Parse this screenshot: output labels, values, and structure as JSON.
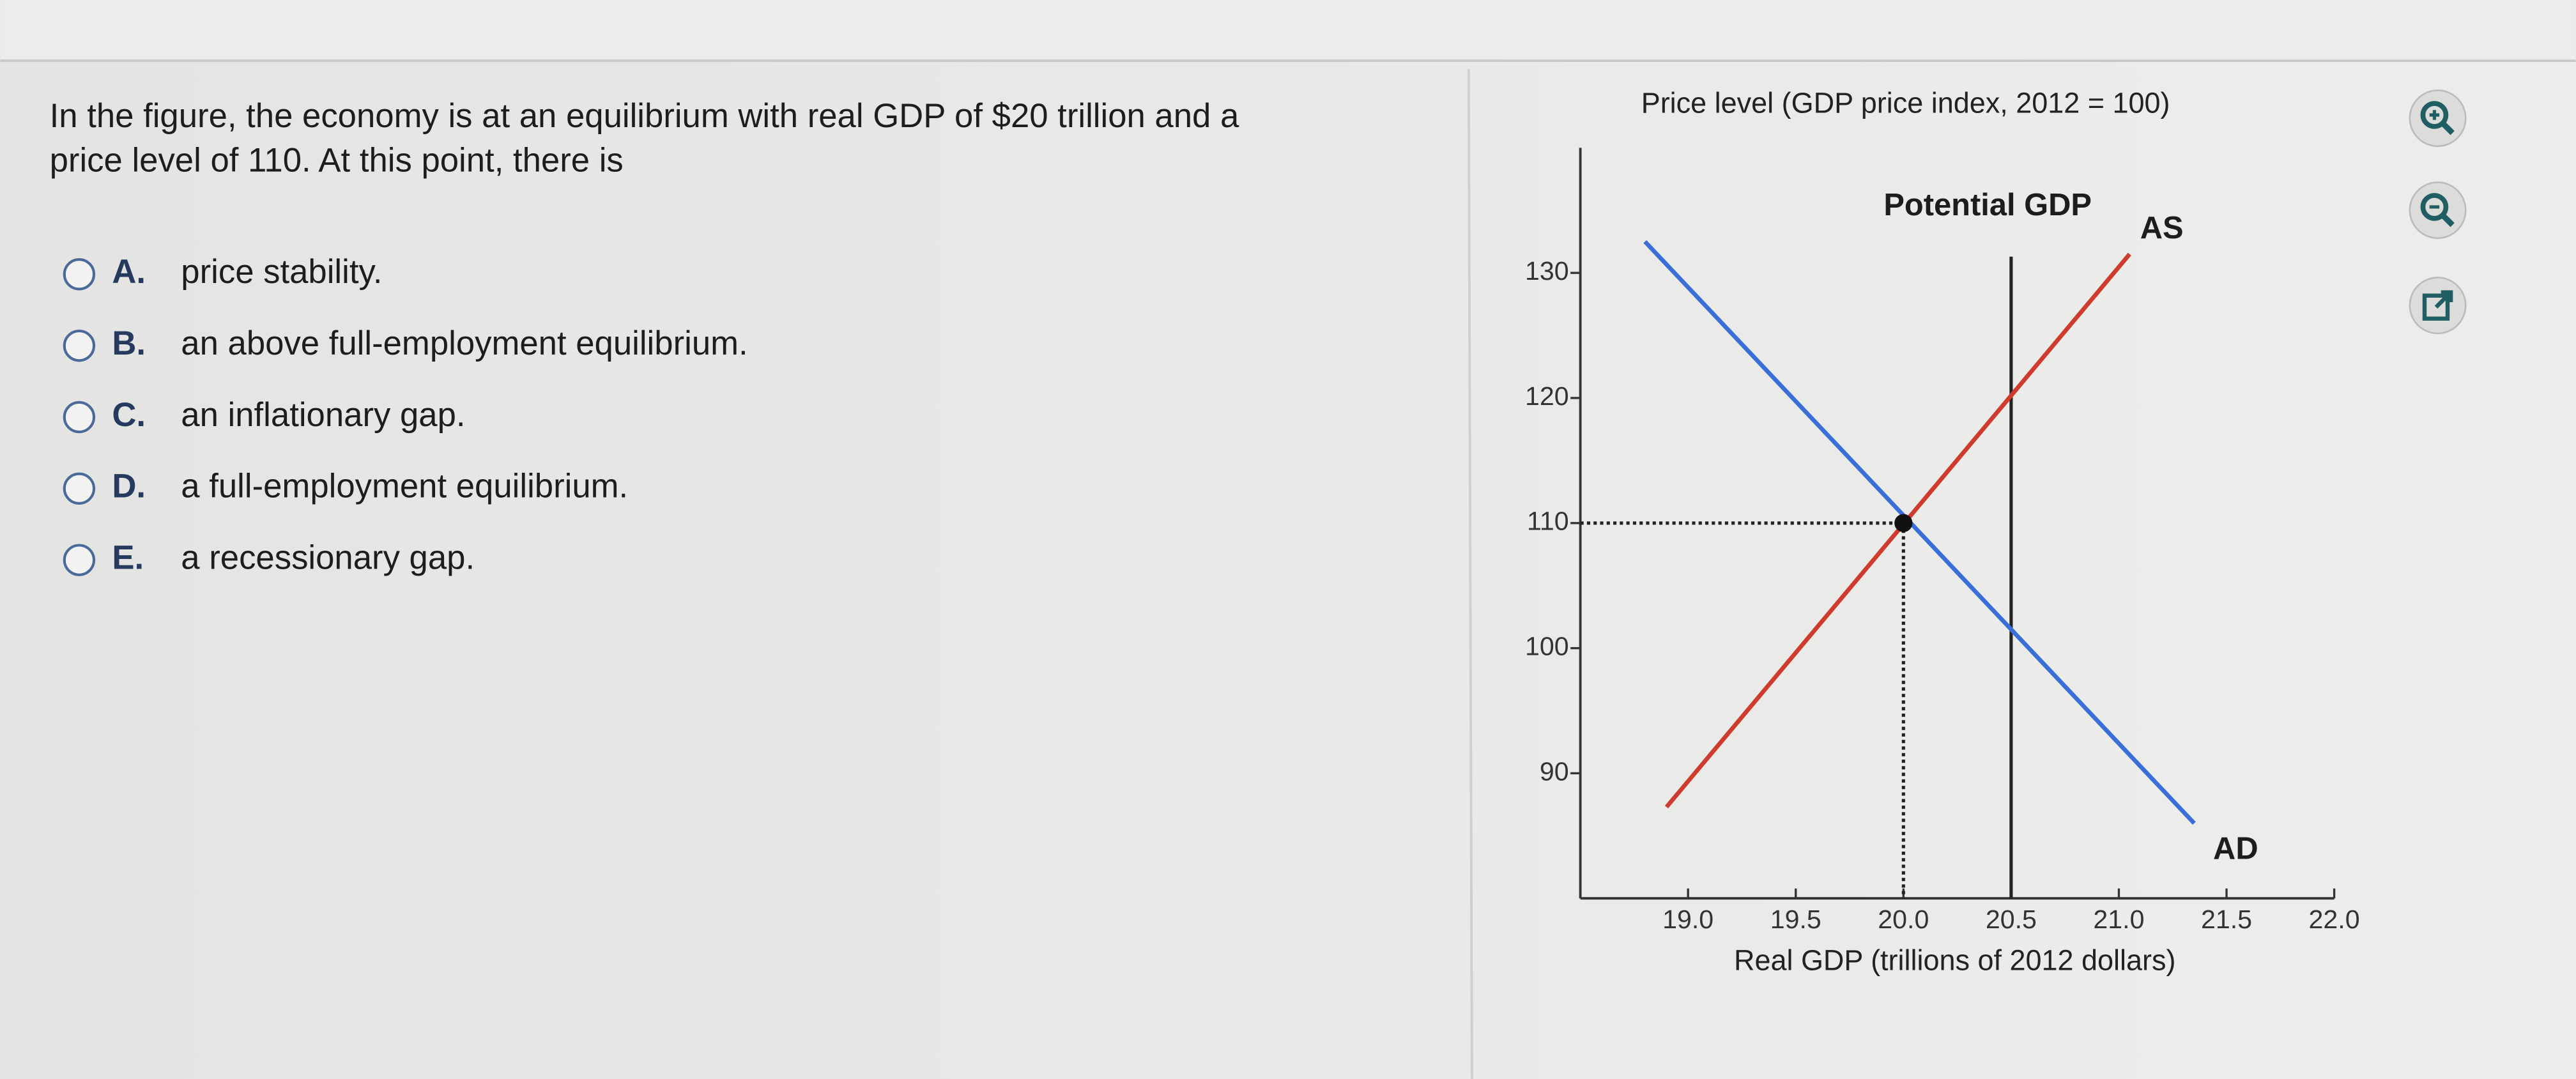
{
  "question": [
    "In the figure, the economy is at an equilibrium with real GDP of $20 trillion and a",
    "price level of 110. At this point, there is"
  ],
  "options": [
    {
      "label": "A.",
      "text": "price stability."
    },
    {
      "label": "B.",
      "text": "an above full-employment equilibrium."
    },
    {
      "label": "C.",
      "text": "an inflationary gap."
    },
    {
      "label": "D.",
      "text": "a full-employment equilibrium."
    },
    {
      "label": "E.",
      "text": "a recessionary gap."
    }
  ],
  "chart_data": {
    "type": "line",
    "y_label": "Price level (GDP price index, 2012 = 100)",
    "x_label": "Real GDP (trillions of 2012 dollars)",
    "potential_gdp_label": "Potential GDP",
    "potential_gdp": 20.5,
    "equilibrium": {
      "x": 20,
      "y": 110
    },
    "series": [
      {
        "name": "AS",
        "color": "#cf3b2c",
        "x": [
          18.9,
          21.05
        ],
        "values": [
          87.3,
          131.5
        ]
      },
      {
        "name": "AD",
        "color": "#3b6fd8",
        "x": [
          18.8,
          21.35
        ],
        "values": [
          132.5,
          86
        ]
      }
    ],
    "xlim": [
      18.5,
      22.0
    ],
    "ylim": [
      80,
      140
    ],
    "xticks": [
      {
        "value": 19,
        "label": "19.0"
      },
      19.5,
      {
        "value": 20,
        "label": "20.0"
      },
      20.5,
      {
        "value": 21,
        "label": "21.0"
      },
      21.5,
      {
        "value": 22,
        "label": "22.0"
      }
    ],
    "yticks": [
      90,
      100,
      110,
      120,
      130
    ]
  }
}
